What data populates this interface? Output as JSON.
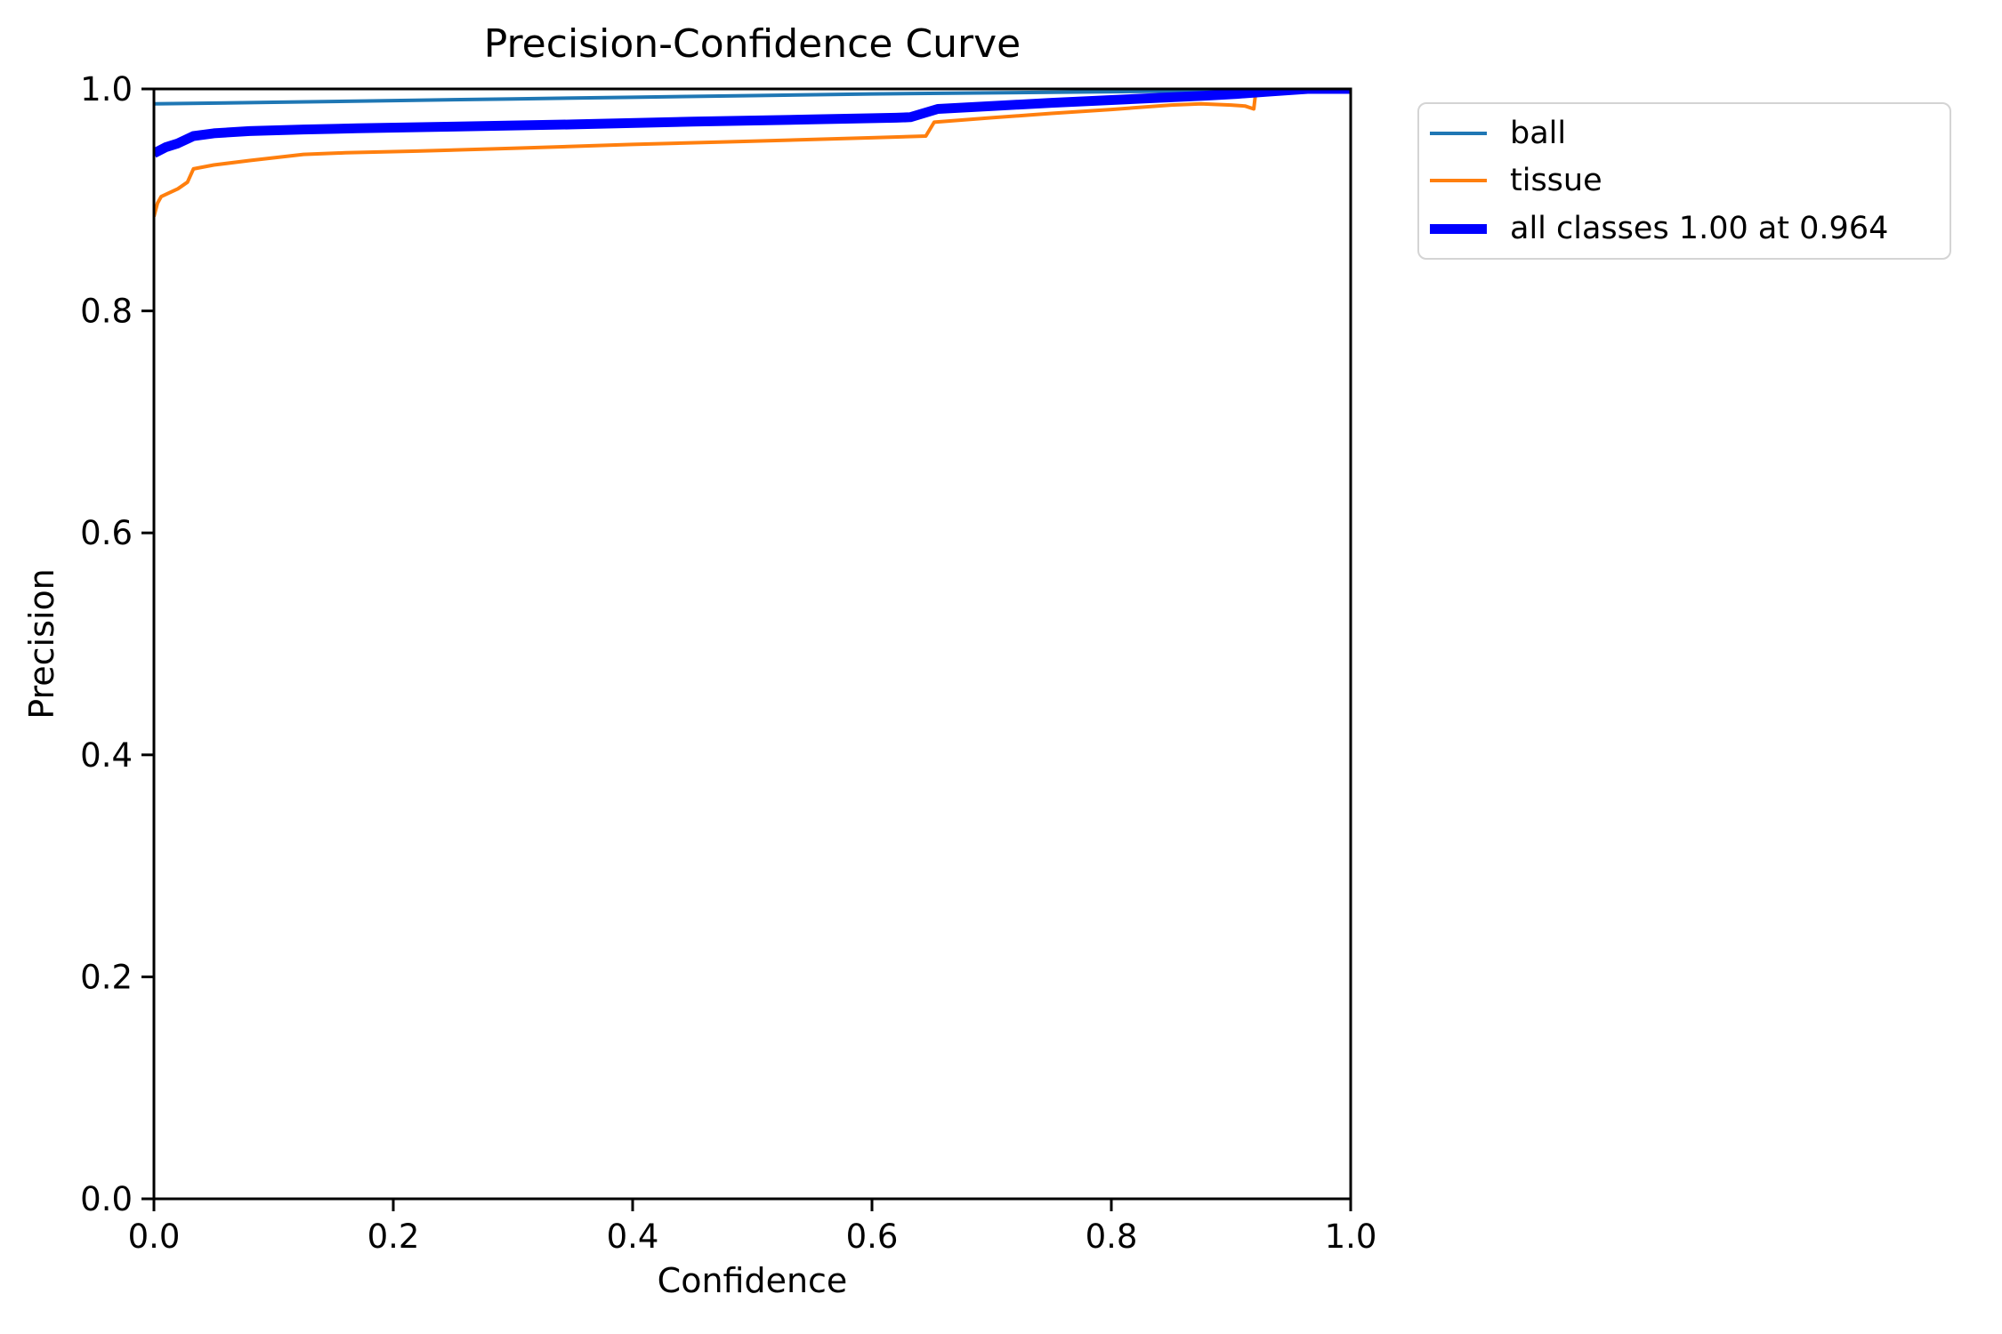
{
  "figure_title": "Precision-Confidence Curve",
  "chart_data": {
    "type": "line",
    "title": "Precision-Confidence Curve",
    "xlabel": "Confidence",
    "ylabel": "Precision",
    "xlim": [
      0.0,
      1.0
    ],
    "ylim": [
      0.0,
      1.0
    ],
    "x_ticks": [
      0.0,
      0.2,
      0.4,
      0.6,
      0.8,
      1.0
    ],
    "y_ticks": [
      0.0,
      0.2,
      0.4,
      0.6,
      0.8,
      1.0
    ],
    "x_tick_labels": [
      "0.0",
      "0.2",
      "0.4",
      "0.6",
      "0.8",
      "1.0"
    ],
    "y_tick_labels": [
      "0.0",
      "0.2",
      "0.4",
      "0.6",
      "0.8",
      "1.0"
    ],
    "grid": false,
    "legend_position": "outside-upper-right",
    "spine_color": "#000000",
    "series": [
      {
        "key": "ball",
        "name": "ball",
        "color": "#1f77b4",
        "line_width": 4,
        "points": [
          [
            0.0,
            0.9865
          ],
          [
            0.1,
            0.988
          ],
          [
            0.2,
            0.9895
          ],
          [
            0.3,
            0.991
          ],
          [
            0.4,
            0.9925
          ],
          [
            0.5,
            0.994
          ],
          [
            0.6,
            0.9955
          ],
          [
            0.7,
            0.9965
          ],
          [
            0.8,
            0.9975
          ],
          [
            0.9,
            0.9985
          ],
          [
            0.95,
            0.9995
          ],
          [
            1.0,
            1.0
          ]
        ]
      },
      {
        "key": "tissue",
        "name": "tissue",
        "color": "#ff7f0e",
        "line_width": 4,
        "points": [
          [
            0.0,
            0.885
          ],
          [
            0.003,
            0.897
          ],
          [
            0.006,
            0.903
          ],
          [
            0.012,
            0.906
          ],
          [
            0.02,
            0.91
          ],
          [
            0.028,
            0.916
          ],
          [
            0.033,
            0.928
          ],
          [
            0.05,
            0.9315
          ],
          [
            0.08,
            0.9355
          ],
          [
            0.125,
            0.941
          ],
          [
            0.16,
            0.9425
          ],
          [
            0.22,
            0.944
          ],
          [
            0.3,
            0.9465
          ],
          [
            0.4,
            0.95
          ],
          [
            0.5,
            0.953
          ],
          [
            0.6,
            0.956
          ],
          [
            0.645,
            0.9575
          ],
          [
            0.652,
            0.97
          ],
          [
            0.7,
            0.974
          ],
          [
            0.75,
            0.978
          ],
          [
            0.8,
            0.9815
          ],
          [
            0.85,
            0.9855
          ],
          [
            0.875,
            0.9865
          ],
          [
            0.9,
            0.9855
          ],
          [
            0.912,
            0.9845
          ],
          [
            0.919,
            0.982
          ],
          [
            0.921,
            1.0
          ],
          [
            1.0,
            1.0
          ]
        ]
      },
      {
        "key": "all-classes",
        "name": "all classes 1.00 at 0.964",
        "color": "#0000ff",
        "line_width": 11,
        "points": [
          [
            0.0,
            0.942
          ],
          [
            0.01,
            0.9475
          ],
          [
            0.02,
            0.951
          ],
          [
            0.033,
            0.9575
          ],
          [
            0.05,
            0.96
          ],
          [
            0.08,
            0.962
          ],
          [
            0.125,
            0.9635
          ],
          [
            0.17,
            0.9645
          ],
          [
            0.25,
            0.966
          ],
          [
            0.35,
            0.968
          ],
          [
            0.45,
            0.9705
          ],
          [
            0.55,
            0.9725
          ],
          [
            0.62,
            0.974
          ],
          [
            0.632,
            0.9745
          ],
          [
            0.655,
            0.982
          ],
          [
            0.7,
            0.9845
          ],
          [
            0.75,
            0.9875
          ],
          [
            0.8,
            0.99
          ],
          [
            0.85,
            0.9925
          ],
          [
            0.88,
            0.994
          ],
          [
            0.905,
            0.9955
          ],
          [
            0.93,
            0.9975
          ],
          [
            0.964,
            1.0
          ],
          [
            1.0,
            1.0
          ]
        ]
      }
    ]
  }
}
